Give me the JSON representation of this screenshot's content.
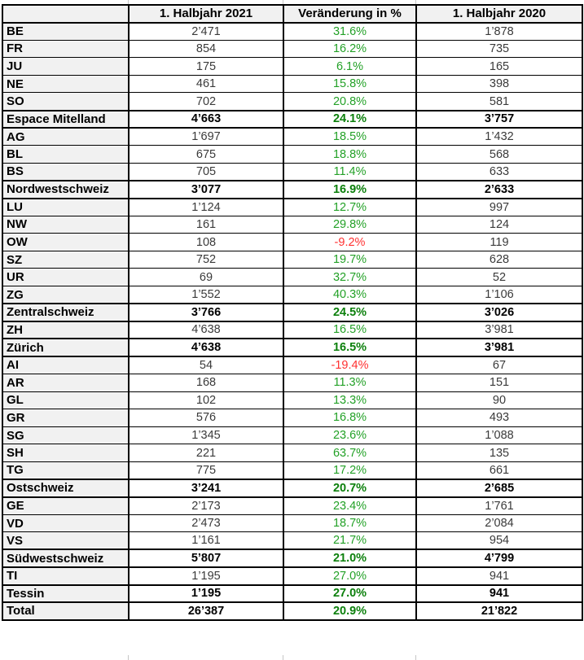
{
  "colors": {
    "positive": "#23a127",
    "positive_bold": "#0c800c",
    "negative": "#ff3030",
    "label_bg": "#f1f1f1",
    "grid_border": "#000000"
  },
  "chart_data": {
    "type": "table",
    "title": "",
    "columns": [
      "",
      "1. Halbjahr 2021",
      "Veränderung in %",
      "1. Halbjahr 2020"
    ],
    "rows": [
      {
        "label": "BE",
        "h1_2021": "2’471",
        "change_pct": "31.6%",
        "h1_2020": "1’878",
        "kind": "canton",
        "trend": "up"
      },
      {
        "label": "FR",
        "h1_2021": "854",
        "change_pct": "16.2%",
        "h1_2020": "735",
        "kind": "canton",
        "trend": "up"
      },
      {
        "label": "JU",
        "h1_2021": "175",
        "change_pct": "6.1%",
        "h1_2020": "165",
        "kind": "canton",
        "trend": "up"
      },
      {
        "label": "NE",
        "h1_2021": "461",
        "change_pct": "15.8%",
        "h1_2020": "398",
        "kind": "canton",
        "trend": "up"
      },
      {
        "label": "SO",
        "h1_2021": "702",
        "change_pct": "20.8%",
        "h1_2020": "581",
        "kind": "canton",
        "trend": "up"
      },
      {
        "label": "Espace Mitelland",
        "h1_2021": "4’663",
        "change_pct": "24.1%",
        "h1_2020": "3’757",
        "kind": "region",
        "trend": "up"
      },
      {
        "label": "AG",
        "h1_2021": "1’697",
        "change_pct": "18.5%",
        "h1_2020": "1’432",
        "kind": "canton",
        "trend": "up"
      },
      {
        "label": "BL",
        "h1_2021": "675",
        "change_pct": "18.8%",
        "h1_2020": "568",
        "kind": "canton",
        "trend": "up"
      },
      {
        "label": "BS",
        "h1_2021": "705",
        "change_pct": "11.4%",
        "h1_2020": "633",
        "kind": "canton",
        "trend": "up"
      },
      {
        "label": "Nordwestschweiz",
        "h1_2021": "3’077",
        "change_pct": "16.9%",
        "h1_2020": "2’633",
        "kind": "region",
        "trend": "up"
      },
      {
        "label": "LU",
        "h1_2021": "1’124",
        "change_pct": "12.7%",
        "h1_2020": "997",
        "kind": "canton",
        "trend": "up"
      },
      {
        "label": "NW",
        "h1_2021": "161",
        "change_pct": "29.8%",
        "h1_2020": "124",
        "kind": "canton",
        "trend": "up"
      },
      {
        "label": "OW",
        "h1_2021": "108",
        "change_pct": "-9.2%",
        "h1_2020": "119",
        "kind": "canton",
        "trend": "down"
      },
      {
        "label": "SZ",
        "h1_2021": "752",
        "change_pct": "19.7%",
        "h1_2020": "628",
        "kind": "canton",
        "trend": "up"
      },
      {
        "label": "UR",
        "h1_2021": "69",
        "change_pct": "32.7%",
        "h1_2020": "52",
        "kind": "canton",
        "trend": "up"
      },
      {
        "label": "ZG",
        "h1_2021": "1’552",
        "change_pct": "40.3%",
        "h1_2020": "1’106",
        "kind": "canton",
        "trend": "up"
      },
      {
        "label": "Zentralschweiz",
        "h1_2021": "3’766",
        "change_pct": "24.5%",
        "h1_2020": "3’026",
        "kind": "region",
        "trend": "up"
      },
      {
        "label": "ZH",
        "h1_2021": "4’638",
        "change_pct": "16.5%",
        "h1_2020": "3’981",
        "kind": "canton",
        "trend": "up"
      },
      {
        "label": "Zürich",
        "h1_2021": "4’638",
        "change_pct": "16.5%",
        "h1_2020": "3’981",
        "kind": "region",
        "trend": "up"
      },
      {
        "label": "AI",
        "h1_2021": "54",
        "change_pct": "-19.4%",
        "h1_2020": "67",
        "kind": "canton",
        "trend": "down"
      },
      {
        "label": "AR",
        "h1_2021": "168",
        "change_pct": "11.3%",
        "h1_2020": "151",
        "kind": "canton",
        "trend": "up"
      },
      {
        "label": "GL",
        "h1_2021": "102",
        "change_pct": "13.3%",
        "h1_2020": "90",
        "kind": "canton",
        "trend": "up"
      },
      {
        "label": "GR",
        "h1_2021": "576",
        "change_pct": "16.8%",
        "h1_2020": "493",
        "kind": "canton",
        "trend": "up"
      },
      {
        "label": "SG",
        "h1_2021": "1’345",
        "change_pct": "23.6%",
        "h1_2020": "1’088",
        "kind": "canton",
        "trend": "up"
      },
      {
        "label": "SH",
        "h1_2021": "221",
        "change_pct": "63.7%",
        "h1_2020": "135",
        "kind": "canton",
        "trend": "up"
      },
      {
        "label": "TG",
        "h1_2021": "775",
        "change_pct": "17.2%",
        "h1_2020": "661",
        "kind": "canton",
        "trend": "up"
      },
      {
        "label": "Ostschweiz",
        "h1_2021": "3’241",
        "change_pct": "20.7%",
        "h1_2020": "2’685",
        "kind": "region",
        "trend": "up"
      },
      {
        "label": "GE",
        "h1_2021": "2’173",
        "change_pct": "23.4%",
        "h1_2020": "1’761",
        "kind": "canton",
        "trend": "up"
      },
      {
        "label": "VD",
        "h1_2021": "2’473",
        "change_pct": "18.7%",
        "h1_2020": "2’084",
        "kind": "canton",
        "trend": "up"
      },
      {
        "label": "VS",
        "h1_2021": "1’161",
        "change_pct": "21.7%",
        "h1_2020": "954",
        "kind": "canton",
        "trend": "up"
      },
      {
        "label": "Südwestschweiz",
        "h1_2021": "5’807",
        "change_pct": "21.0%",
        "h1_2020": "4’799",
        "kind": "region",
        "trend": "up"
      },
      {
        "label": "TI",
        "h1_2021": "1’195",
        "change_pct": "27.0%",
        "h1_2020": "941",
        "kind": "canton",
        "trend": "up"
      },
      {
        "label": "Tessin",
        "h1_2021": "1’195",
        "change_pct": "27.0%",
        "h1_2020": "941",
        "kind": "region",
        "trend": "up"
      },
      {
        "label": "Total",
        "h1_2021": "26’387",
        "change_pct": "20.9%",
        "h1_2020": "21’822",
        "kind": "total",
        "trend": "up"
      }
    ]
  }
}
